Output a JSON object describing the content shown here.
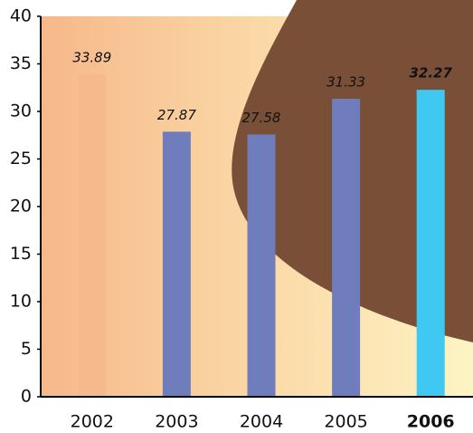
{
  "chart_data": {
    "type": "bar",
    "categories": [
      "2002",
      "2003",
      "2004",
      "2005",
      "2006"
    ],
    "values": [
      33.89,
      27.87,
      27.58,
      31.33,
      32.27
    ],
    "colors": [
      "#f6b98b",
      "#6f7dbd",
      "#6f7dbd",
      "#6f7dbd",
      "#3ec8f2"
    ],
    "highlight": 4,
    "ylim": [
      0,
      40
    ],
    "yticks": [
      0,
      5,
      10,
      15,
      20,
      25,
      30,
      35,
      40
    ]
  }
}
